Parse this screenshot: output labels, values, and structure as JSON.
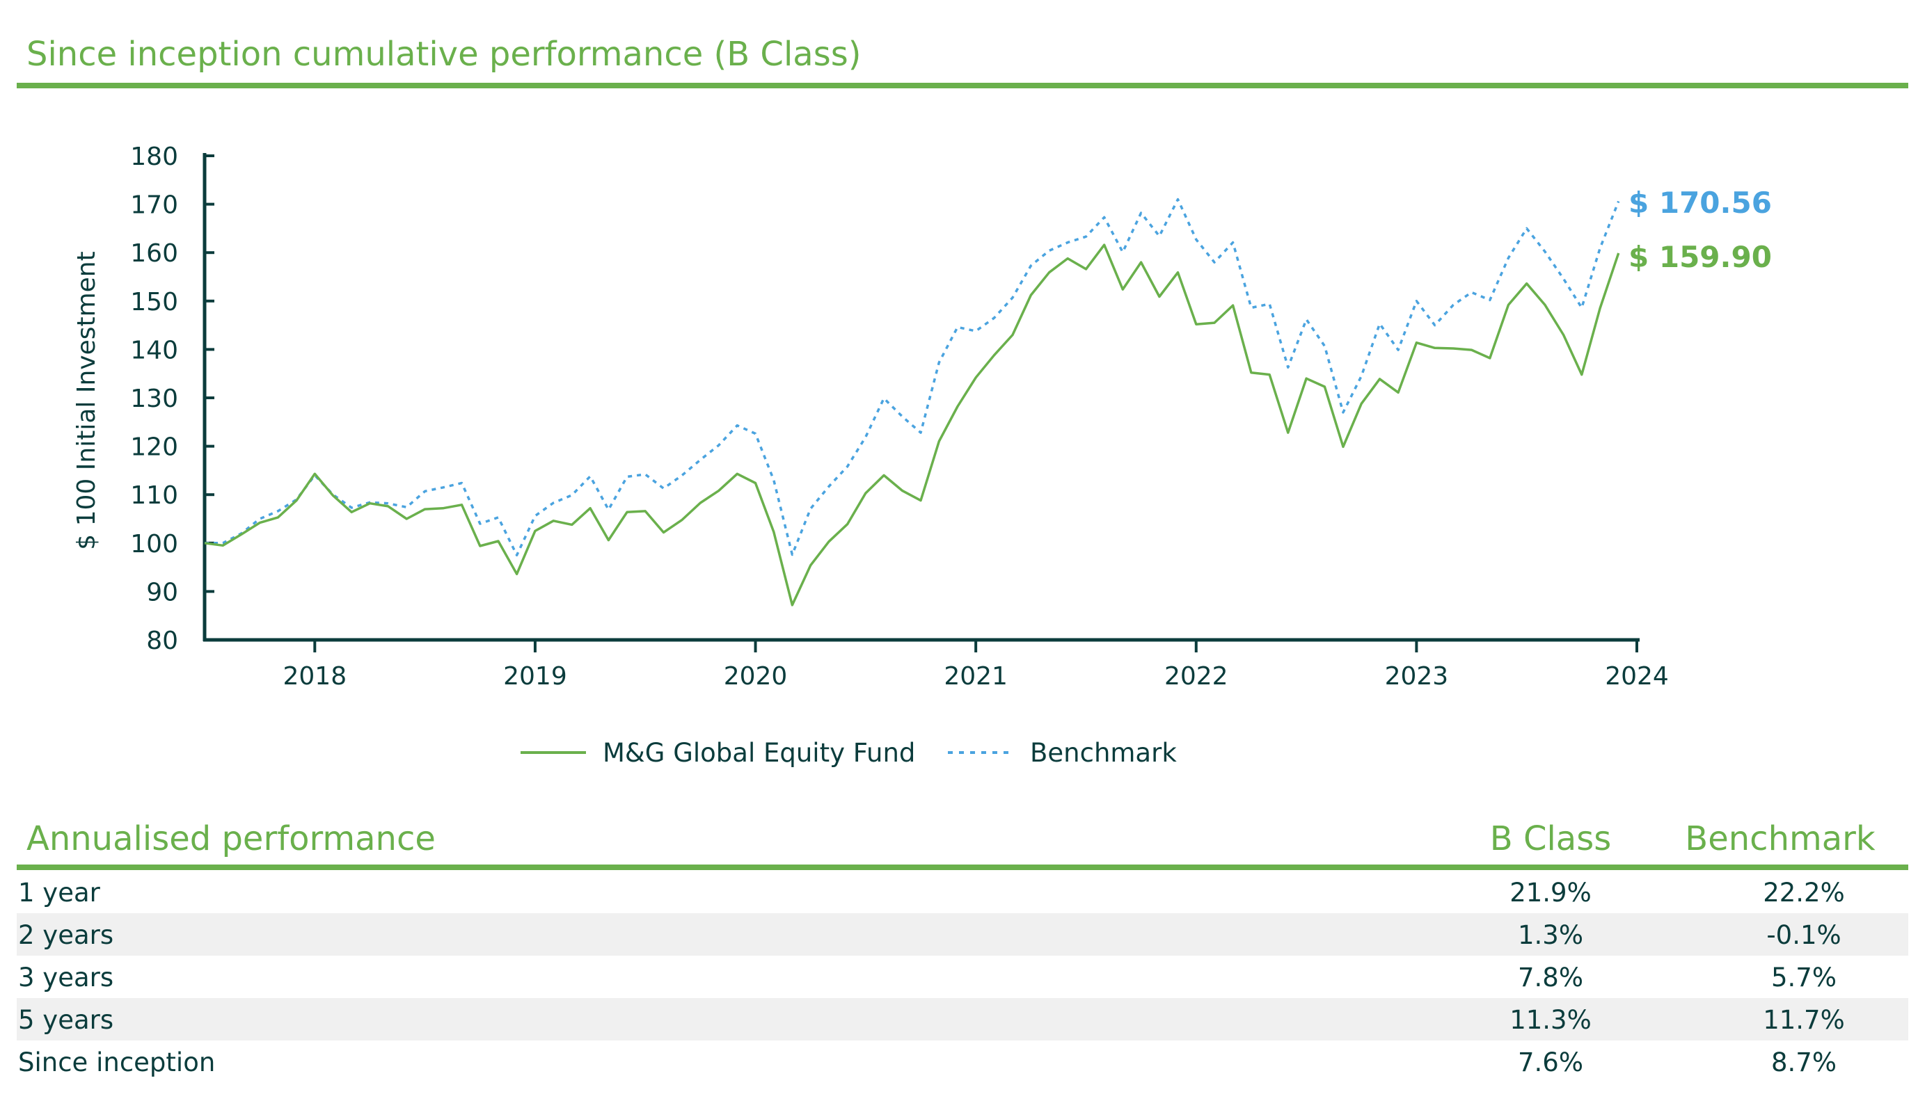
{
  "title": "Since inception cumulative performance (B Class)",
  "colors": {
    "accent": "#6ab04c",
    "fund": "#6ab04c",
    "benchmark": "#4aa3df",
    "text": "#0b3c3c",
    "row_alt": "#f0f0f0"
  },
  "chart_data": {
    "type": "line",
    "title": "",
    "xlabel": "",
    "ylabel": "$ 100 Initial Investment",
    "ylim": [
      80,
      180
    ],
    "yticks": [
      80,
      90,
      100,
      110,
      120,
      130,
      140,
      150,
      160,
      170,
      180
    ],
    "xlim": [
      2017.5,
      2024.0
    ],
    "xticks": [
      "2018",
      "2019",
      "2020",
      "2021",
      "2022",
      "2023",
      "2024"
    ],
    "grid": false,
    "legend": "bottom-center",
    "end_labels": {
      "benchmark": "$ 170.56",
      "fund": "$ 159.90"
    },
    "series": [
      {
        "name": "M&G Global Equity Fund",
        "style": "solid",
        "x": [
          2017.5,
          2017.583,
          2017.667,
          2017.75,
          2017.833,
          2017.917,
          2018.0,
          2018.083,
          2018.167,
          2018.25,
          2018.333,
          2018.417,
          2018.5,
          2018.583,
          2018.667,
          2018.75,
          2018.833,
          2018.917,
          2019.0,
          2019.083,
          2019.167,
          2019.25,
          2019.333,
          2019.417,
          2019.5,
          2019.583,
          2019.667,
          2019.75,
          2019.833,
          2019.917,
          2020.0,
          2020.083,
          2020.167,
          2020.25,
          2020.333,
          2020.417,
          2020.5,
          2020.583,
          2020.667,
          2020.75,
          2020.833,
          2020.917,
          2021.0,
          2021.083,
          2021.167,
          2021.25,
          2021.333,
          2021.417,
          2021.5,
          2021.583,
          2021.667,
          2021.75,
          2021.833,
          2021.917,
          2022.0,
          2022.083,
          2022.167,
          2022.25,
          2022.333,
          2022.417,
          2022.5,
          2022.583,
          2022.667,
          2022.75,
          2022.833,
          2022.917,
          2023.0,
          2023.083,
          2023.167,
          2023.25,
          2023.333,
          2023.417,
          2023.5,
          2023.583,
          2023.667,
          2023.75,
          2023.833,
          2023.917
        ],
        "values": [
          100.0,
          99.5,
          101.8,
          104.2,
          105.3,
          108.8,
          114.3,
          109.8,
          106.4,
          108.2,
          107.6,
          105.0,
          107.0,
          107.2,
          107.9,
          99.4,
          100.4,
          93.6,
          102.5,
          104.6,
          103.8,
          107.2,
          100.6,
          106.4,
          106.6,
          102.2,
          104.8,
          108.3,
          110.8,
          114.3,
          112.4,
          102.3,
          87.2,
          95.4,
          100.3,
          103.9,
          110.3,
          114.0,
          110.8,
          108.8,
          121.0,
          128.2,
          134.2,
          138.8,
          143.0,
          151.2,
          155.9,
          158.8,
          156.6,
          161.6,
          152.4,
          158.0,
          150.9,
          155.9,
          145.2,
          145.5,
          149.1,
          135.2,
          134.8,
          122.8,
          134.0,
          132.3,
          119.9,
          128.8,
          133.9,
          131.1,
          141.4,
          140.3,
          140.2,
          139.9,
          138.2,
          149.2,
          153.6,
          149.2,
          143.0,
          134.8,
          148.5,
          159.9
        ]
      },
      {
        "name": "Benchmark",
        "style": "dotted",
        "x": [
          2017.5,
          2017.583,
          2017.667,
          2017.75,
          2017.833,
          2017.917,
          2018.0,
          2018.083,
          2018.167,
          2018.25,
          2018.333,
          2018.417,
          2018.5,
          2018.583,
          2018.667,
          2018.75,
          2018.833,
          2018.917,
          2019.0,
          2019.083,
          2019.167,
          2019.25,
          2019.333,
          2019.417,
          2019.5,
          2019.583,
          2019.667,
          2019.75,
          2019.833,
          2019.917,
          2020.0,
          2020.083,
          2020.167,
          2020.25,
          2020.333,
          2020.417,
          2020.5,
          2020.583,
          2020.667,
          2020.75,
          2020.833,
          2020.917,
          2021.0,
          2021.083,
          2021.167,
          2021.25,
          2021.333,
          2021.417,
          2021.5,
          2021.583,
          2021.667,
          2021.75,
          2021.833,
          2021.917,
          2022.0,
          2022.083,
          2022.167,
          2022.25,
          2022.333,
          2022.417,
          2022.5,
          2022.583,
          2022.667,
          2022.75,
          2022.833,
          2022.917,
          2023.0,
          2023.083,
          2023.167,
          2023.25,
          2023.333,
          2023.417,
          2023.5,
          2023.583,
          2023.667,
          2023.75,
          2023.833,
          2023.917
        ],
        "values": [
          100.0,
          100.0,
          102.0,
          105.0,
          106.6,
          109.0,
          114.0,
          110.0,
          107.3,
          108.4,
          108.2,
          107.4,
          110.7,
          111.5,
          112.4,
          104.0,
          105.3,
          97.5,
          105.6,
          108.3,
          109.9,
          113.8,
          106.9,
          113.7,
          114.2,
          111.3,
          114.0,
          117.2,
          120.2,
          124.3,
          122.6,
          113.0,
          97.6,
          107.1,
          111.7,
          115.8,
          121.9,
          129.9,
          126.1,
          122.8,
          137.3,
          144.6,
          143.8,
          146.5,
          150.7,
          157.3,
          160.4,
          162.1,
          163.3,
          167.3,
          160.1,
          168.2,
          163.4,
          171.0,
          162.7,
          158.0,
          162.1,
          148.6,
          149.4,
          136.3,
          146.2,
          140.7,
          127.0,
          134.5,
          145.3,
          139.9,
          150.0,
          145.0,
          149.2,
          151.8,
          150.2,
          158.9,
          165.0,
          160.2,
          154.6,
          148.6,
          160.9,
          170.6
        ]
      }
    ]
  },
  "annualised": {
    "title": "Annualised performance",
    "col_b": "B Class",
    "col_bm": "Benchmark",
    "rows": [
      {
        "period": "1 year",
        "b": "21.9%",
        "bm": "22.2%"
      },
      {
        "period": "2 years",
        "b": "1.3%",
        "bm": "-0.1%"
      },
      {
        "period": "3 years",
        "b": "7.8%",
        "bm": "5.7%"
      },
      {
        "period": "5 years",
        "b": "11.3%",
        "bm": "11.7%"
      },
      {
        "period": "Since inception",
        "b": "7.6%",
        "bm": "8.7%"
      }
    ]
  }
}
